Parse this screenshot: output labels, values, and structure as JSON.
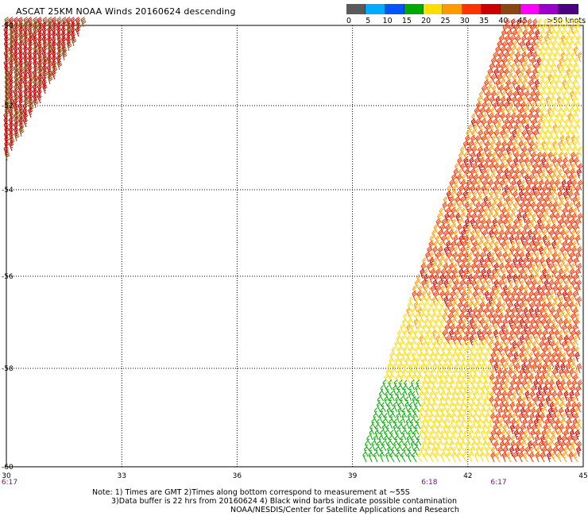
{
  "title": "ASCAT 25KM NOAA Winds 20160624 descending",
  "legend": {
    "colors": [
      "#5a5a5a",
      "#00aaff",
      "#0055ff",
      "#00aa00",
      "#ffdd00",
      "#ff9900",
      "#ff3300",
      "#cc0000",
      "#8b4513",
      "#ff00ff",
      "#9900cc",
      "#4b0082"
    ],
    "labels": [
      "0",
      "5",
      "10",
      "15",
      "20",
      "25",
      "30",
      "35",
      "40",
      "45"
    ],
    "unit": ">50 knots"
  },
  "map": {
    "lon_ticks": [
      "30",
      "33",
      "36",
      "39",
      "42",
      "45"
    ],
    "lat_ticks": [
      "-50",
      "-52",
      "-54",
      "-56",
      "-58",
      "-60"
    ],
    "time_labels": [
      {
        "text": "6:17",
        "lon": 30
      },
      {
        "text": "6:18",
        "lon": 41
      },
      {
        "text": "6:17",
        "lon": 42.8
      }
    ]
  },
  "notes": {
    "line1": "Note: 1) Times are GMT 2)Times along bottom correspond to measurement at ~55S",
    "line2": "3)Data buffer is 22 hrs from 20160624 4) Black wind barbs indicate possible contamination",
    "line3": "NOAA/NESDIS/Center for Satellite Applications and Research"
  }
}
